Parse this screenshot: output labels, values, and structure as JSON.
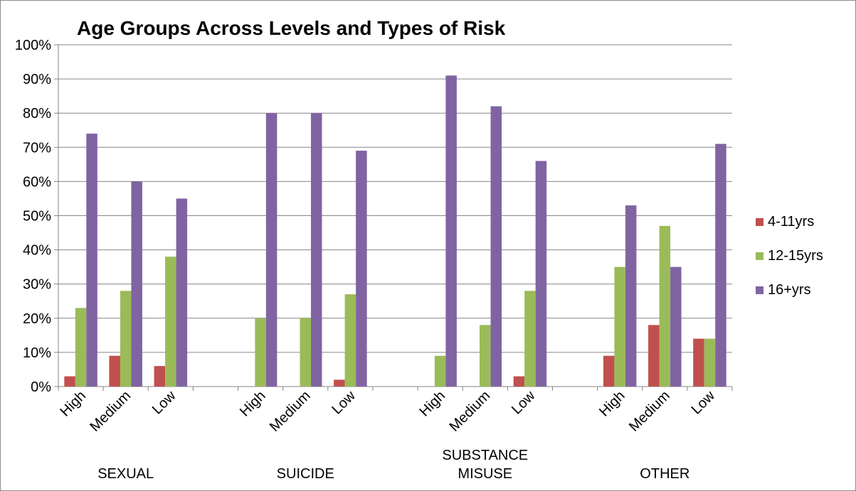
{
  "chart_data": {
    "type": "bar",
    "title": "Age Groups Across Levels and Types of Risk",
    "groups": [
      {
        "label": "SEXUAL",
        "label_lines": [
          "SEXUAL"
        ],
        "levels": [
          "High",
          "Medium",
          "Low"
        ]
      },
      {
        "label": "SUICIDE",
        "label_lines": [
          "SUICIDE"
        ],
        "levels": [
          "High",
          "Medium",
          "Low"
        ]
      },
      {
        "label": "SUBSTANCE MISUSE",
        "label_lines": [
          "SUBSTANCE",
          "MISUSE"
        ],
        "levels": [
          "High",
          "Medium",
          "Low"
        ]
      },
      {
        "label": "OTHER",
        "label_lines": [
          "OTHER"
        ],
        "levels": [
          "High",
          "Medium",
          "Low"
        ]
      }
    ],
    "categories": [
      "High",
      "Medium",
      "Low",
      "",
      "High",
      "Medium",
      "Low",
      "",
      "High",
      "Medium",
      "Low",
      "",
      "High",
      "Medium",
      "Low"
    ],
    "series": [
      {
        "name": "4-11yrs",
        "color": "#c0504d",
        "values": [
          3,
          9,
          6,
          null,
          0,
          0,
          2,
          null,
          0,
          0,
          3,
          null,
          9,
          18,
          14
        ]
      },
      {
        "name": "12-15yrs",
        "color": "#9bbb59",
        "values": [
          23,
          28,
          38,
          null,
          20,
          20,
          27,
          null,
          9,
          18,
          28,
          null,
          35,
          47,
          14
        ]
      },
      {
        "name": "16+yrs",
        "color": "#8064a2",
        "values": [
          74,
          60,
          55,
          null,
          80,
          80,
          69,
          null,
          91,
          82,
          66,
          null,
          53,
          35,
          71
        ]
      }
    ],
    "ylim": [
      0,
      100
    ],
    "yticks": [
      "0%",
      "10%",
      "20%",
      "30%",
      "40%",
      "50%",
      "60%",
      "70%",
      "80%",
      "90%",
      "100%"
    ],
    "xlabel": "",
    "ylabel": "",
    "grid": true,
    "legend_position": "right"
  }
}
